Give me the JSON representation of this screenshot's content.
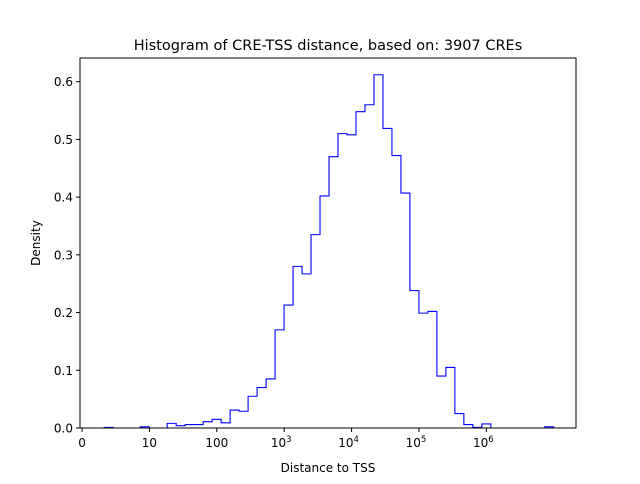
{
  "chart_data": {
    "type": "histogram",
    "title": "Histogram of CRE-TSS distance, based on: 3907 CREs",
    "xlabel": "Distance to TSS",
    "ylabel": "Density",
    "xscale": "log10",
    "xlim_log10": [
      -0.03,
      7.33
    ],
    "ylim": [
      0,
      0.641
    ],
    "grid": false,
    "color": "#0000ff",
    "bin_log10_start": 0.33,
    "bin_log10_width": 0.1334,
    "values": [
      0.001,
      0,
      0,
      0,
      0.002,
      0,
      0,
      0.008,
      0.004,
      0.006,
      0.006,
      0.011,
      0.015,
      0.009,
      0.031,
      0.029,
      0.055,
      0.07,
      0.085,
      0.17,
      0.213,
      0.28,
      0.267,
      0.335,
      0.402,
      0.47,
      0.51,
      0.508,
      0.548,
      0.56,
      0.612,
      0.519,
      0.472,
      0.407,
      0.238,
      0.199,
      0.202,
      0.09,
      0.105,
      0.025,
      0.006,
      0.001,
      0.007,
      0,
      0,
      0,
      0,
      0,
      0,
      0.002
    ],
    "x_ticks": [
      {
        "log10": 0,
        "label": "0"
      },
      {
        "log10": 1,
        "label": "10"
      },
      {
        "log10": 2,
        "label": "100"
      },
      {
        "log10": 3,
        "label": "10",
        "exp": "3"
      },
      {
        "log10": 4,
        "label": "10",
        "exp": "4"
      },
      {
        "log10": 5,
        "label": "10",
        "exp": "5"
      },
      {
        "log10": 6,
        "label": "10",
        "exp": "6"
      }
    ],
    "y_ticks": [
      {
        "value": 0.0,
        "label": "0.0"
      },
      {
        "value": 0.1,
        "label": "0.1"
      },
      {
        "value": 0.2,
        "label": "0.2"
      },
      {
        "value": 0.3,
        "label": "0.3"
      },
      {
        "value": 0.4,
        "label": "0.4"
      },
      {
        "value": 0.5,
        "label": "0.5"
      },
      {
        "value": 0.6,
        "label": "0.6"
      }
    ]
  }
}
